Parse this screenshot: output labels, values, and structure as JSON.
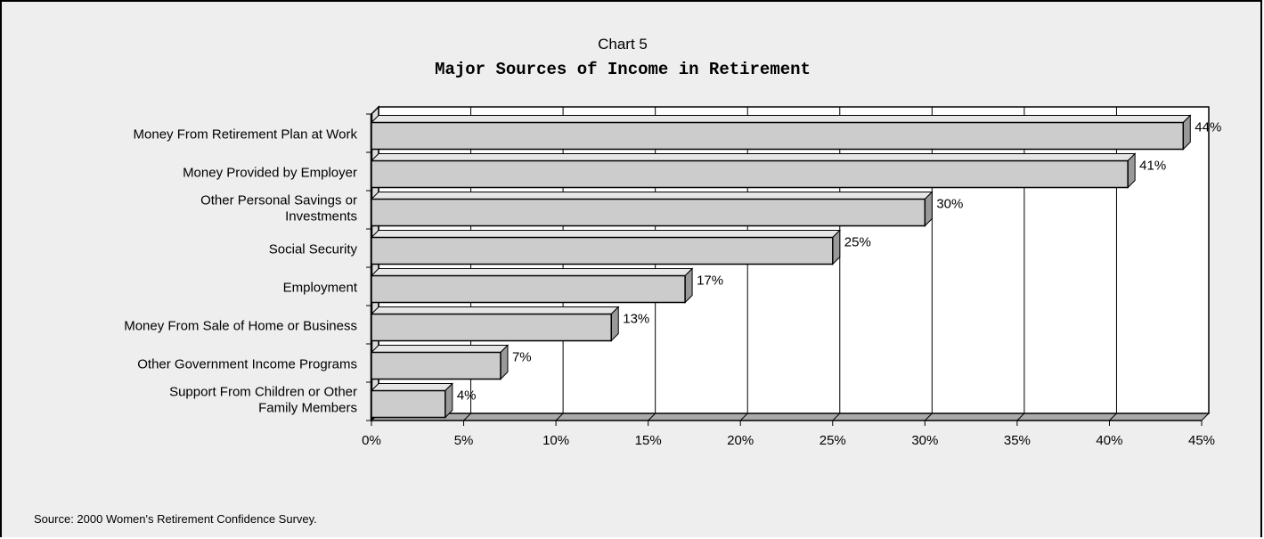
{
  "chart_data": {
    "type": "bar",
    "orientation": "horizontal",
    "supertitle": "Chart 5",
    "title": "Major Sources of Income in Retirement",
    "categories": [
      "Money From Retirement Plan at Work",
      "Money Provided by Employer",
      "Other Personal Savings or Investments",
      "Social Security",
      "Employment",
      "Money From Sale of Home or Business",
      "Other Government Income Programs",
      "Support From Children or Other Family Members"
    ],
    "values": [
      44,
      41,
      30,
      25,
      17,
      13,
      7,
      4
    ],
    "value_labels": [
      "44%",
      "41%",
      "30%",
      "25%",
      "17%",
      "13%",
      "7%",
      "4%"
    ],
    "xlim": [
      0,
      45
    ],
    "xticks": [
      "0%",
      "5%",
      "10%",
      "15%",
      "20%",
      "25%",
      "30%",
      "35%",
      "40%",
      "45%"
    ],
    "xlabel": "",
    "ylabel": "",
    "grid": true,
    "legend": "none",
    "bar_color": "#cccccc",
    "plot_background": "#ffffff",
    "page_background": "#eeeeee"
  },
  "footer": {
    "source": "Source:  2000 Women's Retirement Confidence Survey."
  }
}
